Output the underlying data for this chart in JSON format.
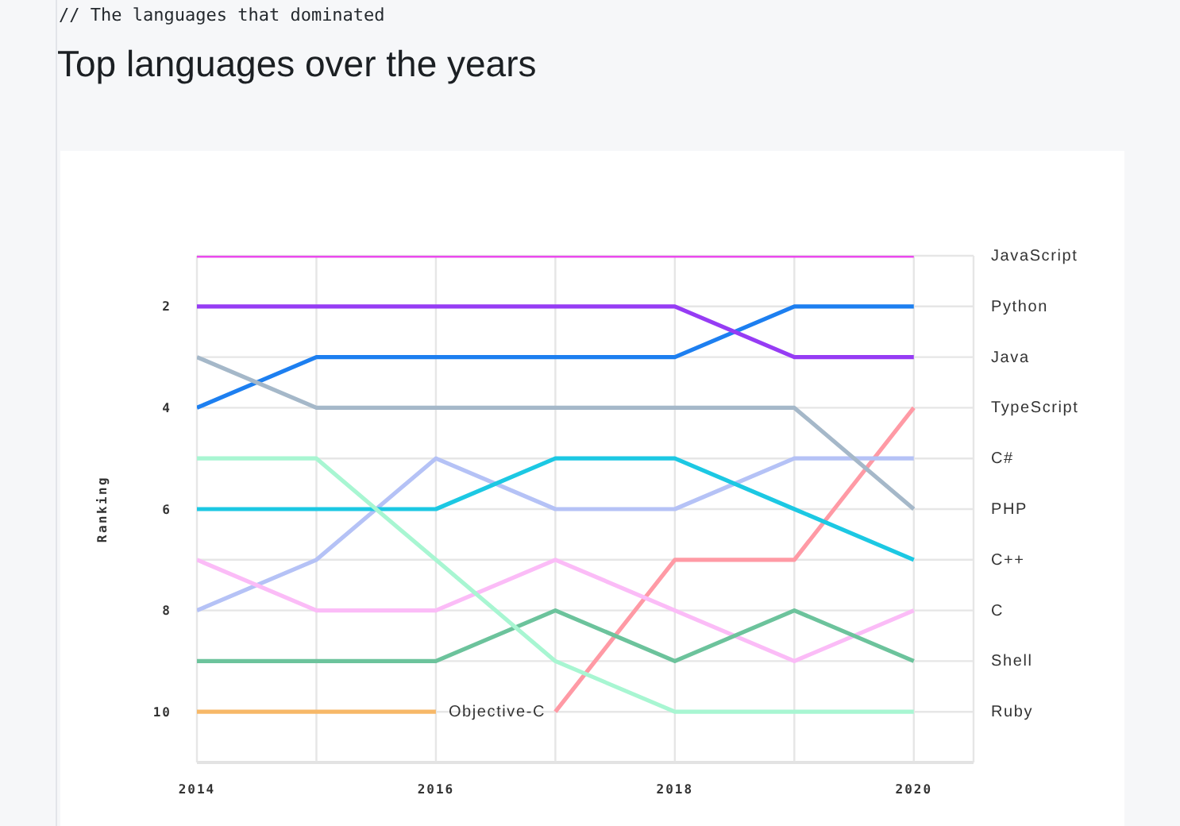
{
  "chart_data": {
    "type": "line",
    "subtitle": "// The languages that dominated",
    "title": "Top languages over the years",
    "ylabel": "Ranking",
    "x": [
      2014,
      2015,
      2016,
      2017,
      2018,
      2019,
      2020
    ],
    "xlim": [
      2014,
      2020.5
    ],
    "xticks": [
      2014,
      {
        "value": 2015,
        "label": null
      },
      2016,
      {
        "value": 2017,
        "label": null
      },
      2018,
      {
        "value": 2019,
        "label": null
      },
      2020
    ],
    "ylim": [
      11,
      1
    ],
    "yticks": [
      {
        "value": 1,
        "label": null
      },
      2,
      {
        "value": 3,
        "label": null
      },
      4,
      {
        "value": 5,
        "label": null
      },
      6,
      {
        "value": 7,
        "label": null
      },
      8,
      {
        "value": 9,
        "label": null
      },
      10
    ],
    "grid": true,
    "marker": "none",
    "line_style": "solid",
    "series": [
      {
        "name": "JavaScript",
        "color": "#ea4aed",
        "values": [
          1,
          1,
          1,
          1,
          1,
          1,
          1
        ]
      },
      {
        "name": "Python",
        "color": "#1d7ff0",
        "values": [
          4,
          3,
          3,
          3,
          3,
          2,
          2
        ]
      },
      {
        "name": "Java",
        "color": "#963cf4",
        "values": [
          2,
          2,
          2,
          2,
          2,
          3,
          3
        ]
      },
      {
        "name": "TypeScript",
        "color": "#ff9aa5",
        "values": [
          null,
          null,
          null,
          10,
          7,
          7,
          4
        ]
      },
      {
        "name": "C#",
        "color": "#b5c2f6",
        "values": [
          8,
          7,
          5,
          6,
          6,
          5,
          5
        ]
      },
      {
        "name": "PHP",
        "color": "#a5b8c9",
        "values": [
          3,
          4,
          4,
          4,
          4,
          4,
          6
        ]
      },
      {
        "name": "C++",
        "color": "#1cc8e3",
        "values": [
          6,
          6,
          6,
          5,
          5,
          6,
          7
        ]
      },
      {
        "name": "C",
        "color": "#fbbcf7",
        "values": [
          7,
          8,
          8,
          7,
          8,
          9,
          8
        ]
      },
      {
        "name": "Shell",
        "color": "#6cc39c",
        "values": [
          9,
          9,
          9,
          8,
          9,
          8,
          9
        ]
      },
      {
        "name": "Ruby",
        "color": "#a8f6d2",
        "values": [
          5,
          5,
          7,
          9,
          10,
          10,
          10
        ]
      },
      {
        "name": "Objective-C",
        "color": "#f7b868",
        "values": [
          10,
          10,
          10,
          null,
          null,
          null,
          null
        ]
      }
    ]
  }
}
